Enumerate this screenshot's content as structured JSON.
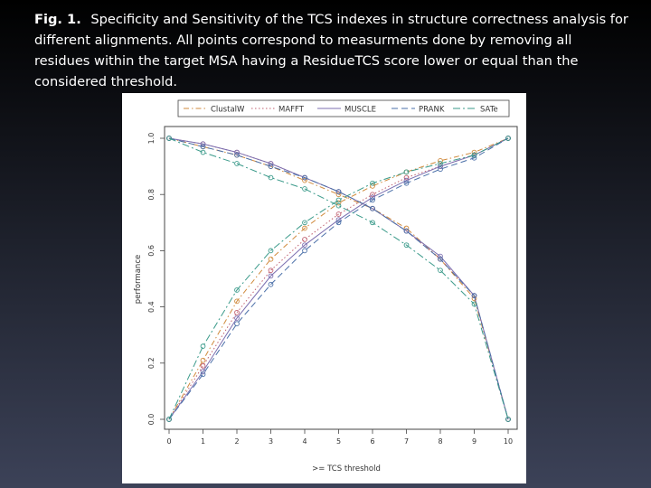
{
  "caption": {
    "label": "Fig. 1.",
    "text": "Specificity and Sensitivity of the TCS indexes in structure correctness analysis for different alignments. All points correspond to measurments done by removing all residues within the target MSA having a ResidueTCS score lower or equal than the considered threshold."
  },
  "chart_data": {
    "type": "line",
    "xlabel": ">= TCS threshold",
    "ylabel": "performance",
    "xlim": [
      0,
      10
    ],
    "ylim": [
      0,
      1
    ],
    "x": [
      0,
      1,
      2,
      3,
      4,
      5,
      6,
      7,
      8,
      9,
      10
    ],
    "xticks": [
      "0",
      "1",
      "2",
      "3",
      "4",
      "5",
      "6",
      "7",
      "8",
      "9",
      "10"
    ],
    "yticks": [
      "0.0",
      "0.2",
      "0.4",
      "0.6",
      "0.8",
      "1.0"
    ],
    "grid": false,
    "legend_position": "top",
    "series": [
      {
        "name": "ClustalW",
        "color": "#d08a3c",
        "dash": "6,3,1.5,3",
        "values_rising": [
          0.0,
          0.21,
          0.42,
          0.57,
          0.68,
          0.77,
          0.83,
          0.88,
          0.92,
          0.95,
          1.0
        ],
        "values_falling": [
          1.0,
          0.97,
          0.94,
          0.9,
          0.85,
          0.8,
          0.75,
          0.68,
          0.57,
          0.43,
          0.0
        ]
      },
      {
        "name": "MAFFT",
        "color": "#c06070",
        "dash": "1.5,2.5",
        "values_rising": [
          0.0,
          0.19,
          0.38,
          0.53,
          0.64,
          0.73,
          0.8,
          0.86,
          0.9,
          0.94,
          1.0
        ],
        "values_falling": [
          1.0,
          0.98,
          0.95,
          0.91,
          0.86,
          0.81,
          0.75,
          0.67,
          0.57,
          0.44,
          0.0
        ]
      },
      {
        "name": "MUSCLE",
        "color": "#7c6fb0",
        "dash": "",
        "values_rising": [
          0.0,
          0.17,
          0.36,
          0.51,
          0.62,
          0.71,
          0.79,
          0.85,
          0.9,
          0.94,
          1.0
        ],
        "values_falling": [
          1.0,
          0.98,
          0.95,
          0.91,
          0.86,
          0.81,
          0.75,
          0.67,
          0.58,
          0.44,
          0.0
        ]
      },
      {
        "name": "PRANK",
        "color": "#4a6fa8",
        "dash": "7,4",
        "values_rising": [
          0.0,
          0.16,
          0.34,
          0.48,
          0.6,
          0.7,
          0.78,
          0.84,
          0.89,
          0.93,
          1.0
        ],
        "values_falling": [
          1.0,
          0.97,
          0.94,
          0.9,
          0.86,
          0.81,
          0.75,
          0.67,
          0.57,
          0.44,
          0.0
        ]
      },
      {
        "name": "SATe",
        "color": "#3a9a8a",
        "dash": "8,3,2,3",
        "values_rising": [
          0.0,
          0.26,
          0.46,
          0.6,
          0.7,
          0.78,
          0.84,
          0.88,
          0.91,
          0.94,
          1.0
        ],
        "values_falling": [
          1.0,
          0.95,
          0.91,
          0.86,
          0.82,
          0.76,
          0.7,
          0.62,
          0.53,
          0.41,
          0.0
        ]
      }
    ]
  }
}
